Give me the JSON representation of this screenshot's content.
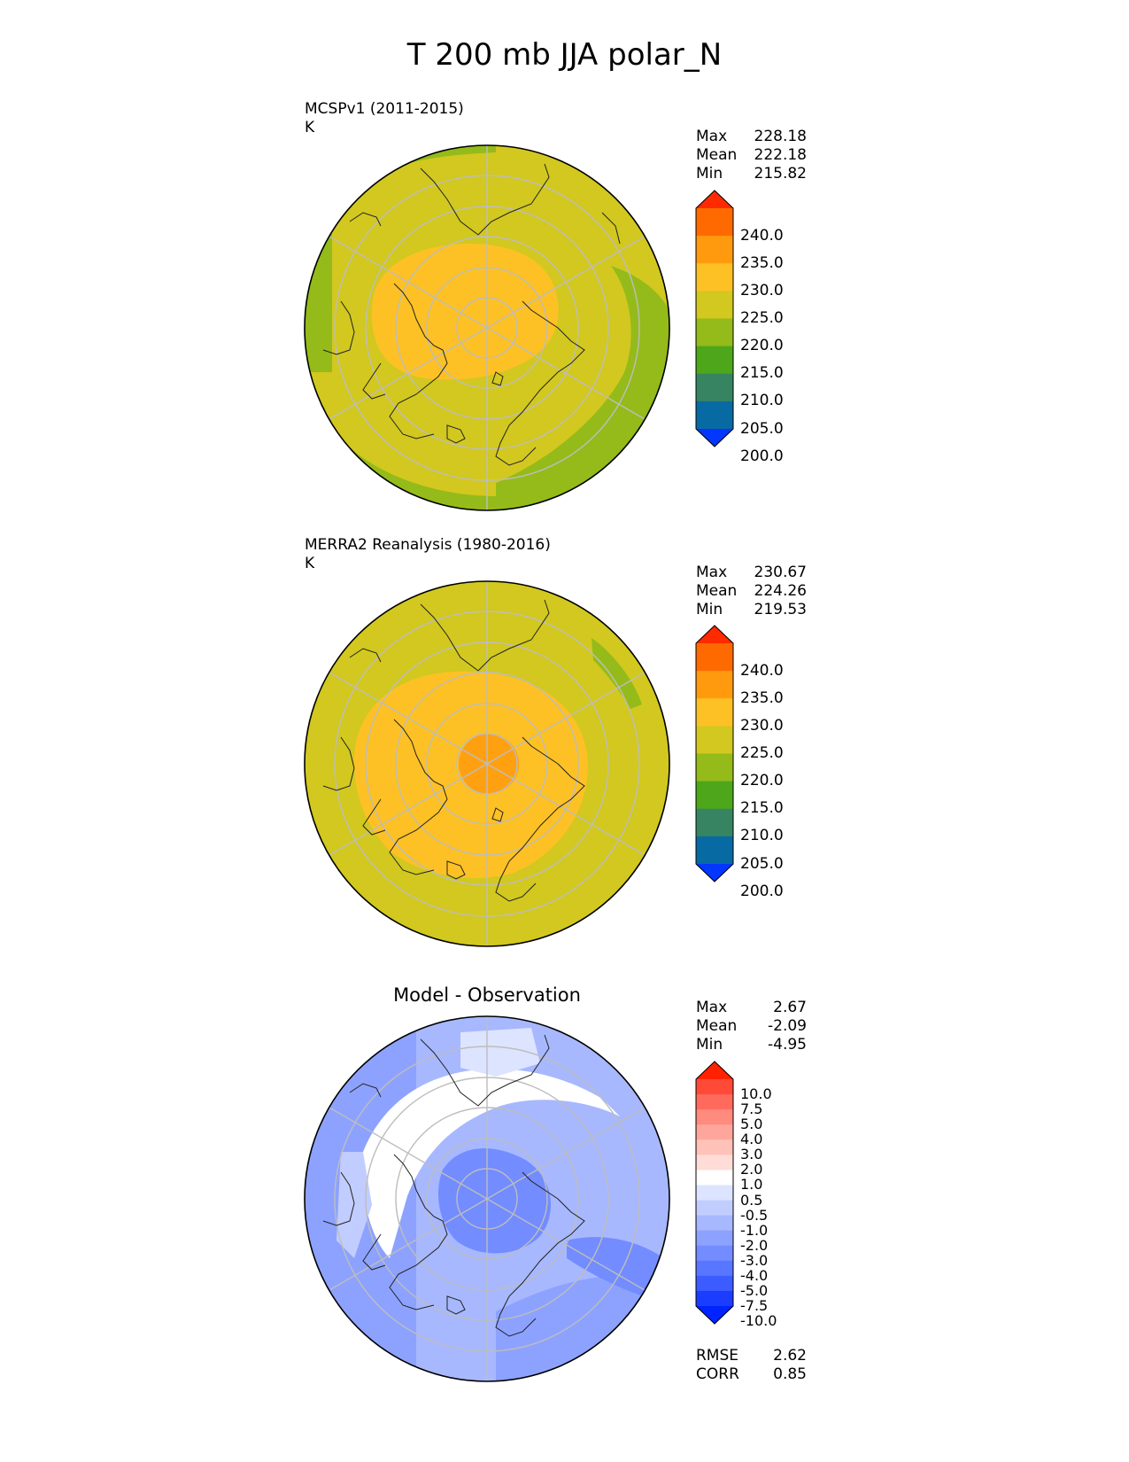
{
  "figure": {
    "title": "T 200 mb JJA polar_N"
  },
  "panels": [
    {
      "title": "MCSPv1 (2011-2015)",
      "units": "K",
      "stats": [
        {
          "label": "Max",
          "value": "228.18"
        },
        {
          "label": "Mean",
          "value": "222.18"
        },
        {
          "label": "Min",
          "value": "215.82"
        }
      ],
      "colorbar": {
        "ticks": [
          "240.0",
          "235.0",
          "230.0",
          "225.0",
          "220.0",
          "215.0",
          "210.0",
          "205.0",
          "200.0"
        ],
        "colors": [
          "#ff2a00",
          "#ff6a00",
          "#ff9a0e",
          "#fdc125",
          "#d2c81f",
          "#94bb1a",
          "#4ea61a",
          "#378462",
          "#086aa2",
          "#0336ff"
        ]
      }
    },
    {
      "title": "MERRA2 Reanalysis (1980-2016)",
      "units": "K",
      "stats": [
        {
          "label": "Max",
          "value": "230.67"
        },
        {
          "label": "Mean",
          "value": "224.26"
        },
        {
          "label": "Min",
          "value": "219.53"
        }
      ],
      "colorbar": {
        "ticks": [
          "240.0",
          "235.0",
          "230.0",
          "225.0",
          "220.0",
          "215.0",
          "210.0",
          "205.0",
          "200.0"
        ],
        "colors": [
          "#ff2a00",
          "#ff6a00",
          "#ff9a0e",
          "#fdc125",
          "#d2c81f",
          "#94bb1a",
          "#4ea61a",
          "#378462",
          "#086aa2",
          "#0336ff"
        ]
      }
    },
    {
      "title": "Model - Observation",
      "stats": [
        {
          "label": "Max",
          "value": "2.67"
        },
        {
          "label": "Mean",
          "value": "-2.09"
        },
        {
          "label": "Min",
          "value": "-4.95"
        }
      ],
      "colorbar": {
        "ticks": [
          "10.0",
          "7.5",
          "5.0",
          "4.0",
          "3.0",
          "2.0",
          "1.0",
          "0.5",
          "-0.5",
          "-1.0",
          "-2.0",
          "-3.0",
          "-4.0",
          "-5.0",
          "-7.5",
          "-10.0"
        ],
        "colors": [
          "#ff2200",
          "#ff4a38",
          "#ff6a5c",
          "#ff8a7e",
          "#ffa69c",
          "#ffc2b9",
          "#ffdcd7",
          "#ffffff",
          "#dde4ff",
          "#c2cdff",
          "#a7b8ff",
          "#8da2ff",
          "#738cff",
          "#5876ff",
          "#3c5cff",
          "#1a3dff",
          "#0024ff"
        ]
      },
      "metrics": [
        {
          "label": "RMSE",
          "value": "2.62"
        },
        {
          "label": "CORR",
          "value": "0.85"
        }
      ]
    }
  ]
}
